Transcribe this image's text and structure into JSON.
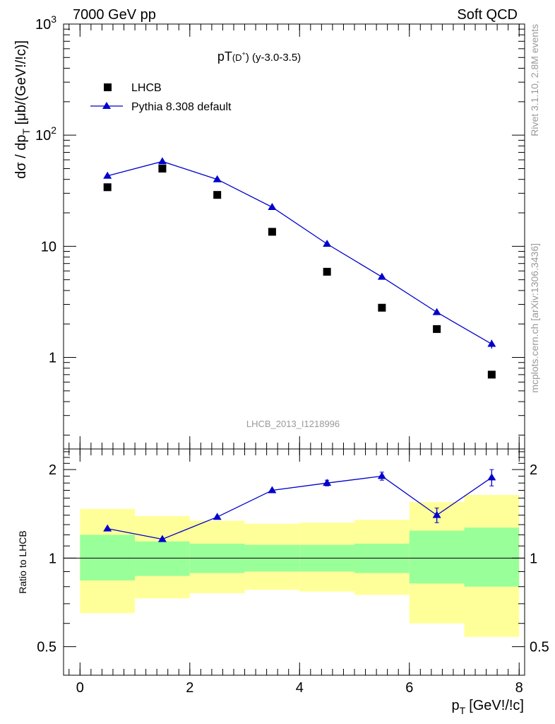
{
  "header": {
    "left": "7000 GeV pp",
    "right": "Soft QCD"
  },
  "side_labels": {
    "rivet": "Rivet 3.1.10,  2.8M events",
    "mcplots": "mcplots.cern.ch [arXiv:1306.3436]"
  },
  "chart_data": [
    {
      "type": "scatter",
      "panel": "main",
      "title_main": "pT",
      "title_sub": "(D",
      "title_sup": "+",
      "title_rest": ") (y-3.0-3.5)",
      "ylabel": "dσ / dp_T [μb/(GeV!/!c)]",
      "yscale": "log",
      "ylim": [
        0.15,
        1000
      ],
      "xlim": [
        -0.3,
        8.1
      ],
      "y_ticks": [
        {
          "value": 1,
          "label": "1"
        },
        {
          "value": 10,
          "label": "10"
        },
        {
          "value": 100,
          "label": "10",
          "exp": "2"
        },
        {
          "value": 1000,
          "label": "10",
          "exp": "3"
        }
      ],
      "watermark": "LHCB_2013_I1218996",
      "legend_position": "top-left",
      "series": [
        {
          "name": "LHCB",
          "marker": "square",
          "color": "#000000",
          "x": [
            0.5,
            1.5,
            2.5,
            3.5,
            4.5,
            5.5,
            6.5,
            7.5
          ],
          "y": [
            34,
            50,
            29,
            13.5,
            5.9,
            2.8,
            1.8,
            0.7
          ]
        },
        {
          "name": "Pythia 8.308 default",
          "marker": "triangle",
          "line": true,
          "color": "#0000cc",
          "x": [
            0.5,
            1.5,
            2.5,
            3.5,
            4.5,
            5.5,
            6.5,
            7.5
          ],
          "y": [
            43,
            58,
            40,
            22.5,
            10.5,
            5.3,
            2.55,
            1.32
          ],
          "err": [
            0,
            0,
            0,
            0,
            0,
            0,
            0.12,
            0.12
          ]
        }
      ]
    },
    {
      "type": "line",
      "panel": "ratio",
      "ylabel": "Ratio to LHCB",
      "xlabel_main": "p",
      "xlabel_sub": "T",
      "xlabel_rest": "[GeV!/!c]",
      "ylim": [
        0.4,
        2.35
      ],
      "xlim": [
        -0.3,
        8.1
      ],
      "x_ticks": [
        0,
        2,
        4,
        6,
        8
      ],
      "y_ticks": [
        {
          "value": 0.5,
          "label": "0.5"
        },
        {
          "value": 1,
          "label": "1"
        },
        {
          "value": 2,
          "label": "2"
        }
      ],
      "reference_line": 1,
      "bands": [
        {
          "x0": 0,
          "x1": 1,
          "inner": [
            0.84,
            1.2
          ],
          "outer": [
            0.65,
            1.47
          ]
        },
        {
          "x0": 1,
          "x1": 2,
          "inner": [
            0.87,
            1.14
          ],
          "outer": [
            0.73,
            1.39
          ]
        },
        {
          "x0": 2,
          "x1": 3,
          "inner": [
            0.89,
            1.12
          ],
          "outer": [
            0.76,
            1.34
          ]
        },
        {
          "x0": 3,
          "x1": 4,
          "inner": [
            0.9,
            1.11
          ],
          "outer": [
            0.78,
            1.31
          ]
        },
        {
          "x0": 4,
          "x1": 5,
          "inner": [
            0.9,
            1.11
          ],
          "outer": [
            0.77,
            1.32
          ]
        },
        {
          "x0": 5,
          "x1": 6,
          "inner": [
            0.89,
            1.12
          ],
          "outer": [
            0.75,
            1.35
          ]
        },
        {
          "x0": 6,
          "x1": 7,
          "inner": [
            0.82,
            1.24
          ],
          "outer": [
            0.6,
            1.55
          ]
        },
        {
          "x0": 7,
          "x1": 8,
          "inner": [
            0.8,
            1.27
          ],
          "outer": [
            0.54,
            1.64
          ]
        }
      ],
      "series": [
        {
          "name": "Pythia 8.308 default",
          "marker": "triangle",
          "color": "#0000cc",
          "x": [
            0.5,
            1.5,
            2.5,
            3.5,
            4.5,
            5.5,
            6.5,
            7.5
          ],
          "y": [
            1.26,
            1.16,
            1.38,
            1.7,
            1.8,
            1.9,
            1.4,
            1.88
          ],
          "err": [
            0,
            0,
            0,
            0,
            0.04,
            0.06,
            0.08,
            0.12
          ]
        }
      ],
      "colors": {
        "inner_band": "#99ff99",
        "outer_band": "#ffff99"
      }
    }
  ]
}
